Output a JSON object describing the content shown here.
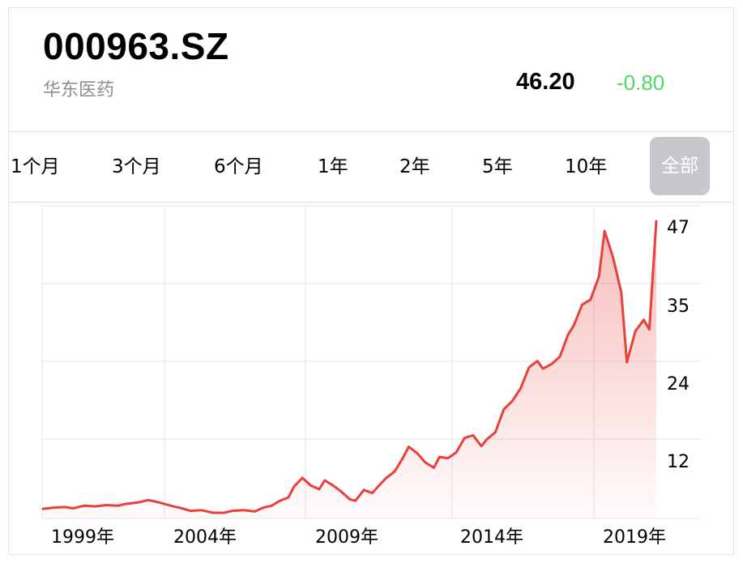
{
  "header": {
    "ticker": "000963.SZ",
    "name": "华东医药",
    "price": "46.20",
    "change": "-0.80"
  },
  "tabs": [
    {
      "label": "1个月",
      "active": false
    },
    {
      "label": "3个月",
      "active": false
    },
    {
      "label": "6个月",
      "active": false
    },
    {
      "label": "1年",
      "active": false
    },
    {
      "label": "2年",
      "active": false
    },
    {
      "label": "5年",
      "active": false
    },
    {
      "label": "10年",
      "active": false
    },
    {
      "label": "全部",
      "active": true
    }
  ],
  "colors": {
    "line": "#e8403a",
    "change": "#4cd964",
    "active_tab_bg": "#c7c7cc",
    "grid": "#e4e4e4"
  },
  "chart_data": {
    "type": "area",
    "x_tick_labels": [
      "1999年",
      "2004年",
      "2009年",
      "2014年",
      "2019年"
    ],
    "x_ticks": [
      1999,
      2004,
      2009,
      2014,
      2019
    ],
    "y_tick_labels": [
      "47",
      "35",
      "24",
      "12"
    ],
    "y_ticks": [
      47,
      35,
      24,
      12
    ],
    "ylim": [
      0,
      48
    ],
    "xlim": [
      1998.0,
      2019.95
    ],
    "grid": true,
    "x": [
      1998.0,
      1998.4,
      1998.8,
      1999.1,
      1999.5,
      1999.9,
      2000.3,
      2000.7,
      2001.0,
      2001.4,
      2001.8,
      2002.2,
      2002.6,
      2002.9,
      2003.3,
      2003.7,
      2004.1,
      2004.5,
      2004.8,
      2005.2,
      2005.6,
      2005.9,
      2006.2,
      2006.5,
      2006.8,
      2007.0,
      2007.3,
      2007.6,
      2007.9,
      2008.1,
      2008.4,
      2008.7,
      2009.0,
      2009.2,
      2009.5,
      2009.8,
      2010.0,
      2010.3,
      2010.6,
      2010.9,
      2011.1,
      2011.4,
      2011.7,
      2012.0,
      2012.2,
      2012.5,
      2012.8,
      2013.1,
      2013.4,
      2013.7,
      2013.9,
      2014.2,
      2014.5,
      2014.8,
      2015.1,
      2015.4,
      2015.7,
      2015.9,
      2016.2,
      2016.5,
      2016.8,
      2017.0,
      2017.3,
      2017.6,
      2017.9,
      2018.1,
      2018.4,
      2018.7,
      2018.9,
      2019.2,
      2019.5,
      2019.7,
      2019.95
    ],
    "y": [
      1.5,
      1.7,
      1.8,
      1.6,
      2.0,
      1.9,
      2.1,
      2.0,
      2.3,
      2.5,
      2.9,
      2.5,
      2.0,
      1.7,
      1.2,
      1.3,
      0.9,
      0.9,
      1.2,
      1.3,
      1.1,
      1.7,
      2.0,
      2.8,
      3.3,
      5.0,
      6.4,
      5.2,
      4.6,
      6.0,
      5.2,
      4.2,
      3.0,
      2.8,
      4.5,
      4.0,
      5.0,
      6.4,
      7.4,
      9.6,
      11.3,
      10.3,
      8.8,
      8.0,
      9.7,
      9.5,
      10.4,
      12.7,
      13.1,
      11.4,
      12.5,
      13.6,
      17.2,
      18.5,
      20.5,
      23.8,
      24.8,
      23.6,
      24.3,
      25.5,
      29.0,
      30.4,
      33.7,
      34.5,
      38.1,
      45.3,
      41.2,
      35.6,
      24.6,
      29.5,
      31.3,
      29.8,
      47.0
    ]
  }
}
